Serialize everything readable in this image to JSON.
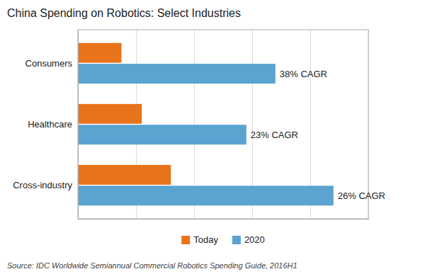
{
  "chart_data": {
    "type": "bar",
    "orientation": "horizontal",
    "title": "China Spending on Robotics: Select Industries",
    "categories": [
      "Cross-industry",
      "Healthcare",
      "Consumers"
    ],
    "series": [
      {
        "name": "Today",
        "color": "#E8731A",
        "values": [
          32,
          22,
          15
        ]
      },
      {
        "name": "2020",
        "color": "#5BA3D0",
        "values": [
          88,
          58,
          68
        ]
      }
    ],
    "annotations": [
      {
        "text": "26% CAGR",
        "series": "2020",
        "category": "Cross-industry"
      },
      {
        "text": "23% CAGR",
        "series": "2020",
        "category": "Healthcare"
      },
      {
        "text": "38% CAGR",
        "series": "2020",
        "category": "Consumers"
      }
    ],
    "source": "Source: IDC Worldwide Semiannual Commercial Robotics Spending Guide, 2016H1",
    "xlim": [
      0,
      100
    ],
    "xticks": [
      0,
      20,
      40,
      60,
      80,
      100
    ],
    "grid": true,
    "legend": "bottom",
    "tick_labels": "y"
  }
}
